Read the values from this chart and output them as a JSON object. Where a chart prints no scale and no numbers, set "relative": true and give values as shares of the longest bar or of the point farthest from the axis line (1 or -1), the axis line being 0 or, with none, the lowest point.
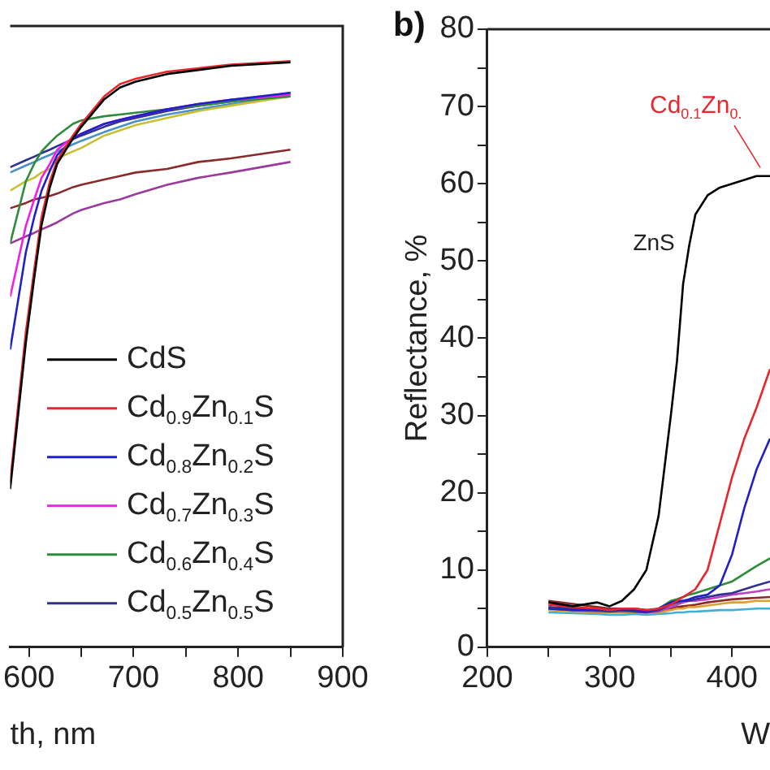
{
  "chart_data": [
    {
      "type": "line",
      "xlabel": "th, nm",
      "relative": true,
      "legend": "bottom right",
      "grid": false,
      "marker": "none",
      "x": [
        582,
        597,
        605,
        612,
        620,
        627,
        642,
        650,
        672,
        687,
        702,
        732,
        762,
        793,
        850
      ],
      "xlim": [
        582,
        900
      ],
      "xticks": [
        600,
        {
          "value": 650,
          "label": null
        },
        700,
        {
          "value": 750,
          "label": null
        },
        800,
        {
          "value": 850,
          "label": null
        },
        900
      ],
      "series": [
        {
          "name": "CdS",
          "color": "#000000",
          "values": [
            0.27,
            0.52,
            0.63,
            0.72,
            0.785,
            0.825,
            0.868,
            0.888,
            0.935,
            0.955,
            0.965,
            0.978,
            0.985,
            0.992,
            0.998
          ]
        },
        {
          "name": "Cd$_{0.9}$Zn$_{0.1}$S",
          "color": "#e8262d",
          "values": [
            0.281,
            0.538,
            0.644,
            0.734,
            0.795,
            0.831,
            0.873,
            0.893,
            0.94,
            0.961,
            0.97,
            0.982,
            0.988,
            0.994,
            1
          ]
        },
        {
          "name": "Cd$_{0.8}$Zn$_{0.2}$S",
          "color": "#2020c8",
          "values": [
            0.508,
            0.674,
            0.734,
            0.779,
            0.813,
            0.84,
            0.867,
            0.876,
            0.893,
            0.9,
            0.906,
            0.918,
            0.927,
            0.934,
            0.946
          ]
        },
        {
          "name": "Cd$_{0.7}$Zn$_{0.3}$S",
          "color": "#f020e0",
          "values": [
            0.598,
            0.719,
            0.764,
            0.801,
            0.825,
            0.849,
            0.87,
            0.876,
            0.893,
            0.9,
            0.906,
            0.918,
            0.927,
            0.934,
            0.943
          ]
        },
        {
          "name": "Cd$_{0.6}$Zn$_{0.4}$S",
          "color": "#2e8b3a",
          "values": [
            0.689,
            0.795,
            0.825,
            0.846,
            0.861,
            0.873,
            0.893,
            0.899,
            0.906,
            0.909,
            0.912,
            0.918,
            0.924,
            0.931,
            0.94
          ]
        },
        {
          "name": "Cd$_{0.5}$Zn$_{0.5}$S",
          "color": "#303090",
          "values": [
            0.819,
            0.831,
            0.837,
            0.843,
            0.849,
            0.855,
            0.867,
            0.873,
            0.888,
            0.897,
            0.903,
            0.915,
            0.924,
            0.931,
            0.946
          ]
        },
        {
          "color": "#c8c030",
          "values": [
            0.779,
            0.795,
            0.801,
            0.81,
            0.816,
            0.834,
            0.846,
            0.852,
            0.873,
            0.882,
            0.891,
            0.903,
            0.915,
            0.924,
            0.94
          ]
        },
        {
          "color": "#4a90c8",
          "values": [
            0.81,
            0.822,
            0.828,
            0.834,
            0.84,
            0.846,
            0.858,
            0.864,
            0.879,
            0.888,
            0.897,
            0.909,
            0.918,
            0.927,
            0.94
          ]
        },
        {
          "color": "#8b2a2a",
          "values": [
            0.749,
            0.758,
            0.764,
            0.767,
            0.77,
            0.774,
            0.785,
            0.789,
            0.798,
            0.804,
            0.81,
            0.816,
            0.828,
            0.834,
            0.849
          ]
        },
        {
          "color": "#9a3a9a",
          "values": [
            0.689,
            0.701,
            0.707,
            0.713,
            0.719,
            0.725,
            0.74,
            0.746,
            0.758,
            0.764,
            0.773,
            0.789,
            0.801,
            0.81,
            0.828
          ]
        }
      ]
    },
    {
      "type": "line",
      "title": "b)",
      "xlabel": "W",
      "ylabel": "Reflectance, %",
      "grid": false,
      "legend": false,
      "marker": "none",
      "x": [
        250,
        270,
        290,
        300,
        310,
        320,
        330,
        340,
        350,
        355,
        360,
        365,
        370,
        380,
        390,
        400,
        410,
        420,
        431
      ],
      "xlim": [
        200,
        431
      ],
      "xticks": [
        200,
        {
          "value": 250,
          "label": null
        },
        300,
        {
          "value": 350,
          "label": null
        },
        400
      ],
      "ylim": [
        0,
        80
      ],
      "yticks": [
        0,
        {
          "value": 5,
          "label": null
        },
        10,
        {
          "value": 15,
          "label": null
        },
        20,
        {
          "value": 25,
          "label": null
        },
        30,
        {
          "value": 35,
          "label": null
        },
        40,
        {
          "value": 45,
          "label": null
        },
        50,
        {
          "value": 55,
          "label": null
        },
        60,
        {
          "value": 65,
          "label": null
        },
        70,
        {
          "value": 75,
          "label": null
        },
        80
      ],
      "series": [
        {
          "name": "ZnS",
          "color": "#000000",
          "values": [
            5.8,
            5.3,
            5.8,
            5.3,
            6,
            7.5,
            10,
            17,
            30,
            37,
            47,
            52,
            56,
            58.5,
            59.5,
            60,
            60.5,
            61,
            61
          ]
        },
        {
          "name": "Cd$_{0.1}$Zn$_{0.}$",
          "color": "#e8262d",
          "values": [
            5.5,
            5.2,
            5,
            4.8,
            5,
            5,
            4.8,
            5,
            5.5,
            6,
            6.5,
            7,
            7.5,
            10,
            16,
            22,
            27,
            31,
            36
          ]
        },
        {
          "color": "#2020c8",
          "values": [
            5,
            4.8,
            4.8,
            4.8,
            4.8,
            4.8,
            4.6,
            5,
            5.8,
            6,
            6,
            6.2,
            6.5,
            6.8,
            8,
            12,
            18,
            23,
            27
          ]
        },
        {
          "color": "#2e8b3a",
          "values": [
            5,
            4.8,
            4.8,
            4.8,
            4.8,
            4.8,
            4.6,
            5,
            6,
            6.2,
            6.5,
            6.8,
            7,
            7.5,
            8,
            8.5,
            9.5,
            10.5,
            11.5
          ]
        },
        {
          "color": "#303090",
          "values": [
            5.2,
            5,
            4.8,
            4.6,
            4.8,
            4.6,
            4.5,
            4.8,
            5.5,
            5.8,
            6,
            6,
            6.2,
            6.5,
            6.8,
            7,
            7.5,
            8,
            8.5
          ]
        },
        {
          "color": "#c040c0",
          "values": [
            5,
            4.8,
            4.6,
            4.6,
            4.6,
            4.6,
            4.5,
            4.6,
            5.2,
            5.5,
            5.8,
            6,
            6,
            6.2,
            6.5,
            6.8,
            7,
            7.2,
            7.5
          ]
        },
        {
          "color": "#e0a030",
          "values": [
            4.8,
            4.6,
            4.5,
            4.5,
            4.5,
            4.5,
            4.4,
            4.5,
            4.8,
            5,
            5,
            5.2,
            5.2,
            5.4,
            5.6,
            5.8,
            5.8,
            6,
            6
          ]
        },
        {
          "color": "#40b0d8",
          "values": [
            4.5,
            4.4,
            4.3,
            4.2,
            4.2,
            4.3,
            4.2,
            4.3,
            4.4,
            4.5,
            4.5,
            4.6,
            4.6,
            4.7,
            4.8,
            4.8,
            4.9,
            5,
            5
          ]
        },
        {
          "color": "#8b2a2a",
          "values": [
            6,
            5.6,
            5.2,
            5,
            5,
            5,
            4.8,
            4.8,
            5,
            5.2,
            5.3,
            5.4,
            5.5,
            5.8,
            6,
            6.2,
            6.3,
            6.4,
            6.5
          ]
        }
      ]
    }
  ]
}
